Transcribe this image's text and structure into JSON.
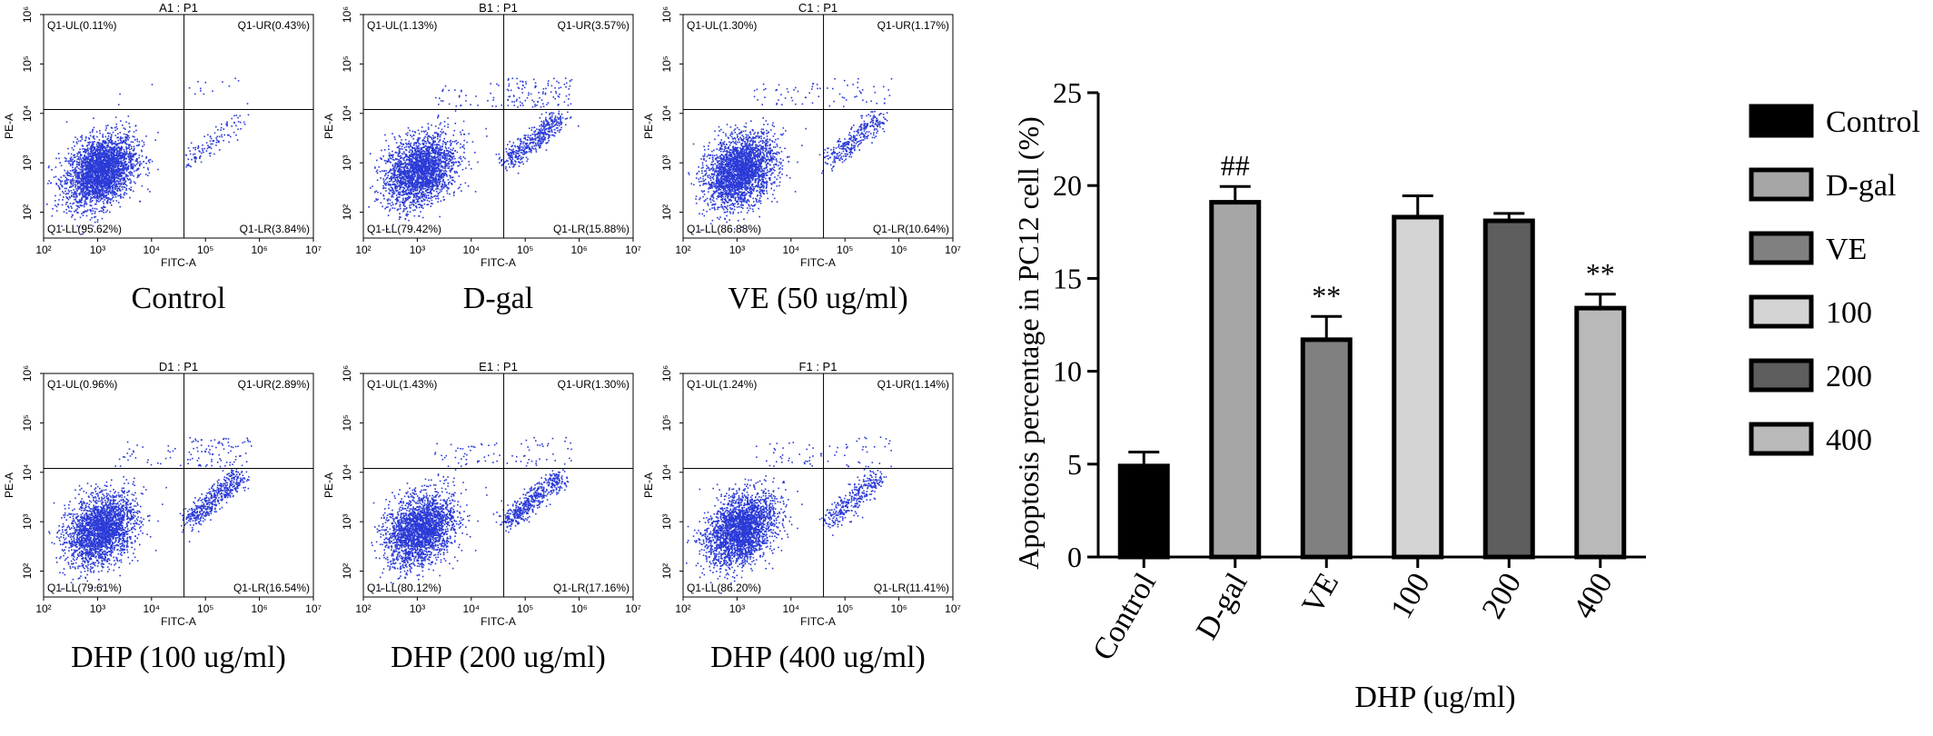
{
  "panels": [
    {
      "title": "A1 : P1",
      "caption": "Control",
      "quadrants": {
        "ul": "Q1-UL(0.11%)",
        "ur": "Q1-UR(0.43%)",
        "ll": "Q1-LL(95.62%)",
        "lr": "Q1-LR(3.84%)"
      },
      "ul_pct": 0.11,
      "ur_pct": 0.43,
      "ll_pct": 95.62,
      "lr_pct": 3.84
    },
    {
      "title": "B1 : P1",
      "caption": "D-gal",
      "quadrants": {
        "ul": "Q1-UL(1.13%)",
        "ur": "Q1-UR(3.57%)",
        "ll": "Q1-LL(79.42%)",
        "lr": "Q1-LR(15.88%)"
      },
      "ul_pct": 1.13,
      "ur_pct": 3.57,
      "ll_pct": 79.42,
      "lr_pct": 15.88
    },
    {
      "title": "C1 : P1",
      "caption": "VE (50 ug/ml)",
      "quadrants": {
        "ul": "Q1-UL(1.30%)",
        "ur": "Q1-UR(1.17%)",
        "ll": "Q1-LL(86.88%)",
        "lr": "Q1-LR(10.64%)"
      },
      "ul_pct": 1.3,
      "ur_pct": 1.17,
      "ll_pct": 86.88,
      "lr_pct": 10.64
    },
    {
      "title": "D1 : P1",
      "caption": "DHP (100 ug/ml)",
      "quadrants": {
        "ul": "Q1-UL(0.96%)",
        "ur": "Q1-UR(2.89%)",
        "ll": "Q1-LL(79.61%)",
        "lr": "Q1-LR(16.54%)"
      },
      "ul_pct": 0.96,
      "ur_pct": 2.89,
      "ll_pct": 79.61,
      "lr_pct": 16.54
    },
    {
      "title": "E1 : P1",
      "caption": "DHP (200 ug/ml)",
      "quadrants": {
        "ul": "Q1-UL(1.43%)",
        "ur": "Q1-UR(1.30%)",
        "ll": "Q1-LL(80.12%)",
        "lr": "Q1-LR(17.16%)"
      },
      "ul_pct": 1.43,
      "ur_pct": 1.3,
      "ll_pct": 80.12,
      "lr_pct": 17.16
    },
    {
      "title": "F1 : P1",
      "caption": "DHP (400 ug/ml)",
      "quadrants": {
        "ul": "Q1-UL(1.24%)",
        "ur": "Q1-UR(1.14%)",
        "ll": "Q1-LL(86.20%)",
        "lr": "Q1-LR(11.41%)"
      },
      "ul_pct": 1.24,
      "ur_pct": 1.14,
      "ll_pct": 86.2,
      "lr_pct": 11.41
    }
  ],
  "scatter_axes": {
    "xlabel": "FITC-A",
    "ylabel": "PE-A",
    "x_tick_labels": [
      "10²",
      "10³",
      "10⁴",
      "10⁵",
      "10⁶",
      "10⁷"
    ],
    "y_tick_labels": [
      "10²",
      "10³",
      "10⁴",
      "10⁵",
      "10⁶"
    ],
    "dot_color": "#2b3bd6"
  },
  "chart_data": [
    {
      "type": "scatter",
      "log_x": true,
      "log_y": true,
      "xlabel": "FITC-A",
      "ylabel": "PE-A",
      "xlim": [
        100,
        10000000
      ],
      "ylim": [
        30,
        1000000
      ],
      "x_gate": 40000,
      "y_gate": 12000,
      "panels": [
        "A1 : P1",
        "B1 : P1",
        "C1 : P1",
        "D1 : P1",
        "E1 : P1",
        "F1 : P1"
      ]
    },
    {
      "type": "bar",
      "categories": [
        "Control",
        "D-gal",
        "VE",
        "100",
        "200",
        "400"
      ],
      "values": [
        4.9,
        19.1,
        11.7,
        18.3,
        18.1,
        13.4
      ],
      "errors": [
        0.75,
        0.85,
        1.25,
        1.15,
        0.4,
        0.75
      ],
      "annotations": [
        "",
        "##",
        "**",
        "",
        "",
        "**"
      ],
      "colors": [
        "#000000",
        "#a6a6a6",
        "#808080",
        "#d4d4d4",
        "#5e5e5e",
        "#b9b9b9"
      ],
      "title": "",
      "ylabel": "Apoptosis percentage in PC12 cell (%)",
      "xlabel": "DHP (ug/ml)",
      "ylim": [
        0,
        25
      ],
      "yticks": [
        0,
        5,
        10,
        15,
        20,
        25
      ],
      "legend": [
        "Control",
        "D-gal",
        "VE",
        "100",
        "200",
        "400"
      ],
      "legend_position": "right"
    }
  ]
}
